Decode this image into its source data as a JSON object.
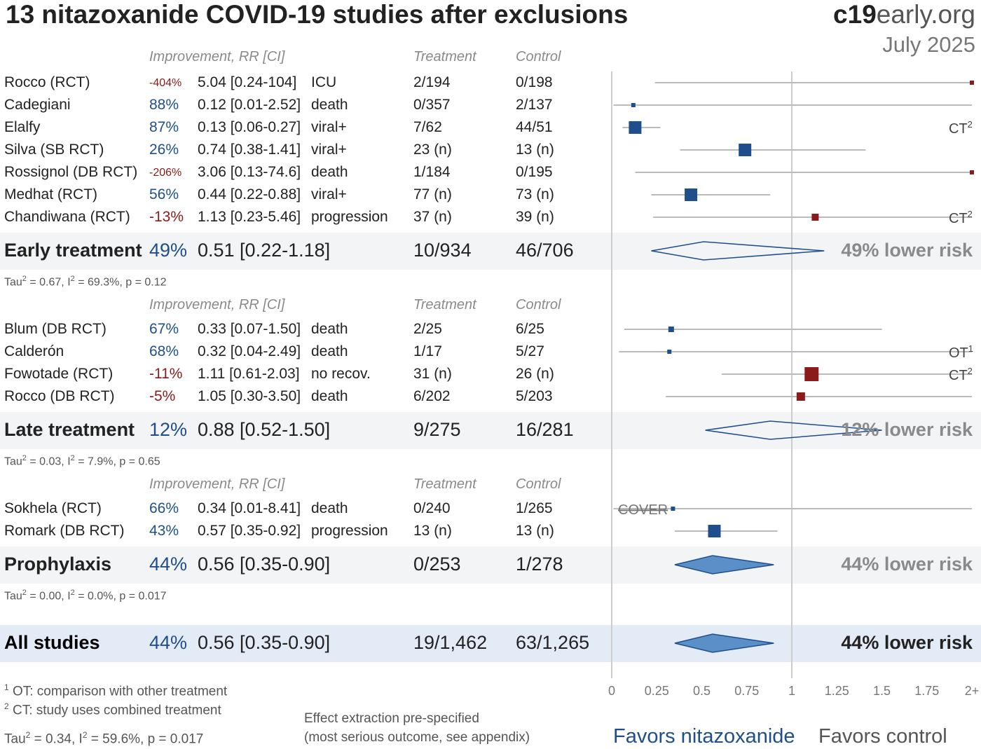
{
  "title": "13 nitazoxanide COVID-19 studies after exclusions",
  "brand": {
    "part1": "c19",
    "part2": "early.org"
  },
  "date": "July 2025",
  "column_headers": {
    "improvement": "Improvement, RR [CI]",
    "treatment": "Treatment",
    "control": "Control"
  },
  "groups": [
    {
      "name": "Early treatment",
      "summary": {
        "improvement": "49%",
        "rr": "0.51 [0.22-1.18]",
        "treatment": "10/934",
        "control": "46/706",
        "label": "49% lower risk"
      },
      "heterogeneity": {
        "tau": "Tau",
        "tau_sup": "2",
        "tau_val": " = 0.67, I",
        "i_sup": "2",
        "rest": " = 69.3%, p = 0.12"
      },
      "studies": [
        {
          "name": "Rocco (RCT)",
          "improvement": "-404%",
          "rr": "5.04 [0.24-104]",
          "outcome": "ICU",
          "treatment": "2/194",
          "control": "0/198",
          "note": ""
        },
        {
          "name": "Cadegiani",
          "improvement": "88%",
          "rr": "0.12 [0.01-2.52]",
          "outcome": "death",
          "treatment": "0/357",
          "control": "2/137",
          "note": ""
        },
        {
          "name": "Elalfy",
          "improvement": "87%",
          "rr": "0.13 [0.06-0.27]",
          "outcome": "viral+",
          "treatment": "7/62",
          "control": "44/51",
          "note": "CT",
          "note_sup": "2"
        },
        {
          "name": "Silva (SB RCT)",
          "improvement": "26%",
          "rr": "0.74 [0.38-1.41]",
          "outcome": "viral+",
          "treatment": "23 (n)",
          "control": "13 (n)",
          "note": ""
        },
        {
          "name": "Rossignol (DB RCT)",
          "improvement": "-206%",
          "rr": "3.06 [0.13-74.6]",
          "outcome": "death",
          "treatment": "1/184",
          "control": "0/195",
          "note": ""
        },
        {
          "name": "Medhat (RCT)",
          "improvement": "56%",
          "rr": "0.44 [0.22-0.88]",
          "outcome": "viral+",
          "treatment": "77 (n)",
          "control": "73 (n)",
          "note": ""
        },
        {
          "name": "Chandiwana (RCT)",
          "improvement": "-13%",
          "rr": "1.13 [0.23-5.46]",
          "outcome": "progression",
          "treatment": "37 (n)",
          "control": "39 (n)",
          "note": "CT",
          "note_sup": "2"
        }
      ]
    },
    {
      "name": "Late treatment",
      "summary": {
        "improvement": "12%",
        "rr": "0.88 [0.52-1.50]",
        "treatment": "9/275",
        "control": "16/281",
        "label": "12% lower risk"
      },
      "heterogeneity": {
        "tau": "Tau",
        "tau_sup": "2",
        "tau_val": " = 0.03, I",
        "i_sup": "2",
        "rest": " = 7.9%, p = 0.65"
      },
      "studies": [
        {
          "name": "Blum (DB RCT)",
          "improvement": "67%",
          "rr": "0.33 [0.07-1.50]",
          "outcome": "death",
          "treatment": "2/25",
          "control": "6/25",
          "note": ""
        },
        {
          "name": "Calderón",
          "improvement": "68%",
          "rr": "0.32 [0.04-2.49]",
          "outcome": "death",
          "treatment": "1/17",
          "control": "5/27",
          "note": "OT",
          "note_sup": "1"
        },
        {
          "name": "Fowotade (RCT)",
          "improvement": "-11%",
          "rr": "1.11 [0.61-2.03]",
          "outcome": "no recov.",
          "treatment": "31 (n)",
          "control": "26 (n)",
          "note": "CT",
          "note_sup": "2"
        },
        {
          "name": "Rocco (DB RCT)",
          "improvement": "-5%",
          "rr": "1.05 [0.30-3.50]",
          "outcome": "death",
          "treatment": "6/202",
          "control": "5/203",
          "note": ""
        }
      ]
    },
    {
      "name": "Prophylaxis",
      "summary": {
        "improvement": "44%",
        "rr": "0.56 [0.35-0.90]",
        "treatment": "0/253",
        "control": "1/278",
        "label": "44% lower risk"
      },
      "heterogeneity": {
        "tau": "Tau",
        "tau_sup": "2",
        "tau_val": " = 0.00, I",
        "i_sup": "2",
        "rest": " = 0.0%, p = 0.017"
      },
      "studies": [
        {
          "name": "Sokhela (RCT)",
          "improvement": "66%",
          "rr": "0.34 [0.01-8.41]",
          "outcome": "death",
          "treatment": "0/240",
          "control": "1/265",
          "note": "COVER"
        },
        {
          "name": "Romark (DB RCT)",
          "improvement": "43%",
          "rr": "0.57 [0.35-0.92]",
          "outcome": "progression",
          "treatment": "13 (n)",
          "control": "13 (n)",
          "note": ""
        }
      ]
    }
  ],
  "all_studies": {
    "name": "All studies",
    "improvement": "44%",
    "rr": "0.56 [0.35-0.90]",
    "treatment": "19/1,462",
    "control": "63/1,265",
    "label": "44% lower risk"
  },
  "footnotes": {
    "n1": "1",
    "t1": " OT: comparison with other treatment",
    "n2": "2",
    "t2": " CT: study uses combined treatment",
    "het_all": {
      "tau": "Tau",
      "tau_sup": "2",
      "tau_val": " = 0.34, I",
      "i_sup": "2",
      "rest": " = 59.6%, p = 0.017"
    },
    "extraction1": "Effect extraction pre-specified",
    "extraction2": "(most serious outcome, see appendix)"
  },
  "favors": {
    "left": "Favors nitazoxanide",
    "right": "Favors control"
  },
  "chart_data": {
    "type": "forest",
    "xlim": [
      0,
      2
    ],
    "x_ticks": [
      "0",
      "0.25",
      "0.5",
      "0.75",
      "1",
      "1.25",
      "1.5",
      "1.75",
      "2+"
    ],
    "reference_line": 1,
    "colors": {
      "favorable": "#1f4e8c",
      "unfavorable": "#8b1a1a",
      "diamond_fill": "#5b8fc7",
      "ci_line": "#bbbbbb"
    },
    "studies": [
      {
        "name": "Rocco (RCT)",
        "rr": 5.04,
        "lo": 0.24,
        "hi": 104
      },
      {
        "name": "Cadegiani",
        "rr": 0.12,
        "lo": 0.01,
        "hi": 2.52
      },
      {
        "name": "Elalfy",
        "rr": 0.13,
        "lo": 0.06,
        "hi": 0.27
      },
      {
        "name": "Silva (SB RCT)",
        "rr": 0.74,
        "lo": 0.38,
        "hi": 1.41
      },
      {
        "name": "Rossignol (DB RCT)",
        "rr": 3.06,
        "lo": 0.13,
        "hi": 74.6
      },
      {
        "name": "Medhat (RCT)",
        "rr": 0.44,
        "lo": 0.22,
        "hi": 0.88
      },
      {
        "name": "Chandiwana (RCT)",
        "rr": 1.13,
        "lo": 0.23,
        "hi": 5.46
      },
      {
        "name": "Blum (DB RCT)",
        "rr": 0.33,
        "lo": 0.07,
        "hi": 1.5
      },
      {
        "name": "Calderón",
        "rr": 0.32,
        "lo": 0.04,
        "hi": 2.49
      },
      {
        "name": "Fowotade (RCT)",
        "rr": 1.11,
        "lo": 0.61,
        "hi": 2.03
      },
      {
        "name": "Rocco (DB RCT)",
        "rr": 1.05,
        "lo": 0.3,
        "hi": 3.5
      },
      {
        "name": "Sokhela (RCT)",
        "rr": 0.34,
        "lo": 0.01,
        "hi": 8.41
      },
      {
        "name": "Romark (DB RCT)",
        "rr": 0.57,
        "lo": 0.35,
        "hi": 0.92
      }
    ],
    "summaries": [
      {
        "name": "Early treatment",
        "rr": 0.51,
        "lo": 0.22,
        "hi": 1.18,
        "filled": false
      },
      {
        "name": "Late treatment",
        "rr": 0.88,
        "lo": 0.52,
        "hi": 1.5,
        "filled": false
      },
      {
        "name": "Prophylaxis",
        "rr": 0.56,
        "lo": 0.35,
        "hi": 0.9,
        "filled": true
      },
      {
        "name": "All studies",
        "rr": 0.56,
        "lo": 0.35,
        "hi": 0.9,
        "filled": true
      }
    ]
  }
}
